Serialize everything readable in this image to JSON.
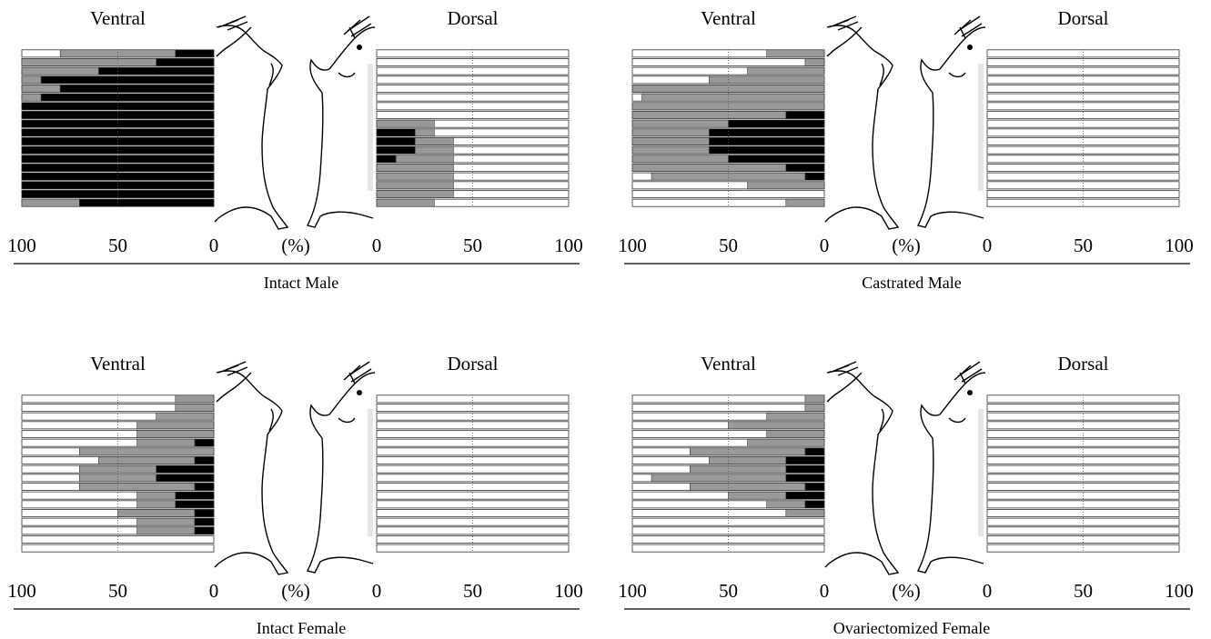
{
  "chart_data": [
    {
      "type": "mirrored_stacked_barh",
      "title": "Intact Male",
      "xlabel": "(%)",
      "xlim": [
        0,
        100
      ],
      "xticks": [
        0,
        50,
        100
      ],
      "left": {
        "title": "Ventral",
        "series": [
          {
            "color": "#000000",
            "values": [
              20,
              30,
              60,
              90,
              80,
              90,
              100,
              100,
              100,
              100,
              100,
              100,
              100,
              100,
              100,
              100,
              100,
              70
            ]
          },
          {
            "color": "#999999",
            "values": [
              60,
              70,
              40,
              10,
              20,
              10,
              0,
              0,
              0,
              0,
              0,
              0,
              0,
              0,
              0,
              0,
              0,
              30
            ]
          }
        ]
      },
      "right": {
        "title": "Dorsal",
        "series": [
          {
            "color": "#000000",
            "values": [
              0,
              0,
              0,
              0,
              0,
              0,
              0,
              0,
              0,
              20,
              20,
              20,
              10,
              0,
              0,
              0,
              0,
              0
            ]
          },
          {
            "color": "#999999",
            "values": [
              0,
              0,
              0,
              0,
              0,
              0,
              0,
              0,
              30,
              10,
              20,
              20,
              30,
              40,
              40,
              40,
              40,
              30
            ]
          }
        ]
      }
    },
    {
      "type": "mirrored_stacked_barh",
      "title": "Castrated Male",
      "xlabel": "(%)",
      "xlim": [
        0,
        100
      ],
      "xticks": [
        0,
        50,
        100
      ],
      "left": {
        "title": "Ventral",
        "series": [
          {
            "color": "#000000",
            "values": [
              0,
              0,
              0,
              0,
              0,
              0,
              0,
              20,
              50,
              60,
              60,
              60,
              50,
              20,
              10,
              0,
              0,
              0
            ]
          },
          {
            "color": "#999999",
            "values": [
              30,
              10,
              40,
              60,
              100,
              95,
              100,
              80,
              50,
              40,
              40,
              40,
              50,
              80,
              80,
              40,
              0,
              20
            ]
          }
        ]
      },
      "right": {
        "title": "Dorsal",
        "series": [
          {
            "color": "#000000",
            "values": [
              0,
              0,
              0,
              0,
              0,
              0,
              0,
              0,
              0,
              0,
              0,
              0,
              0,
              0,
              0,
              0,
              0,
              0
            ]
          },
          {
            "color": "#999999",
            "values": [
              0,
              0,
              0,
              0,
              0,
              0,
              0,
              0,
              0,
              0,
              0,
              0,
              0,
              0,
              0,
              0,
              0,
              0
            ]
          }
        ]
      }
    },
    {
      "type": "mirrored_stacked_barh",
      "title": "Intact Female",
      "xlabel": "(%)",
      "xlim": [
        0,
        100
      ],
      "xticks": [
        0,
        50,
        100
      ],
      "left": {
        "title": "Ventral",
        "series": [
          {
            "color": "#000000",
            "values": [
              0,
              0,
              0,
              0,
              0,
              10,
              0,
              10,
              30,
              30,
              10,
              20,
              20,
              10,
              10,
              10,
              0,
              0
            ]
          },
          {
            "color": "#999999",
            "values": [
              20,
              20,
              30,
              40,
              40,
              30,
              70,
              50,
              40,
              40,
              60,
              20,
              20,
              40,
              30,
              30,
              0,
              0
            ]
          }
        ]
      },
      "right": {
        "title": "Dorsal",
        "series": [
          {
            "color": "#000000",
            "values": [
              0,
              0,
              0,
              0,
              0,
              0,
              0,
              0,
              0,
              0,
              0,
              0,
              0,
              0,
              0,
              0,
              0,
              0
            ]
          },
          {
            "color": "#999999",
            "values": [
              0,
              0,
              0,
              0,
              0,
              0,
              0,
              0,
              0,
              0,
              0,
              0,
              0,
              0,
              0,
              0,
              0,
              0
            ]
          }
        ]
      }
    },
    {
      "type": "mirrored_stacked_barh",
      "title": "Ovariectomized Female",
      "xlabel": "(%)",
      "xlim": [
        0,
        100
      ],
      "xticks": [
        0,
        50,
        100
      ],
      "left": {
        "title": "Ventral",
        "series": [
          {
            "color": "#000000",
            "values": [
              0,
              0,
              0,
              0,
              0,
              0,
              10,
              20,
              20,
              20,
              10,
              20,
              10,
              0,
              0,
              0,
              0,
              0
            ]
          },
          {
            "color": "#999999",
            "values": [
              10,
              10,
              30,
              50,
              30,
              40,
              60,
              40,
              50,
              70,
              60,
              30,
              20,
              20,
              0,
              0,
              0,
              0
            ]
          }
        ]
      },
      "right": {
        "title": "Dorsal",
        "series": [
          {
            "color": "#000000",
            "values": [
              0,
              0,
              0,
              0,
              0,
              0,
              0,
              0,
              0,
              0,
              0,
              0,
              0,
              0,
              0,
              0,
              0,
              0
            ]
          },
          {
            "color": "#999999",
            "values": [
              0,
              0,
              0,
              0,
              0,
              0,
              0,
              0,
              0,
              0,
              0,
              0,
              0,
              0,
              0,
              0,
              0,
              0
            ]
          }
        ]
      }
    }
  ]
}
